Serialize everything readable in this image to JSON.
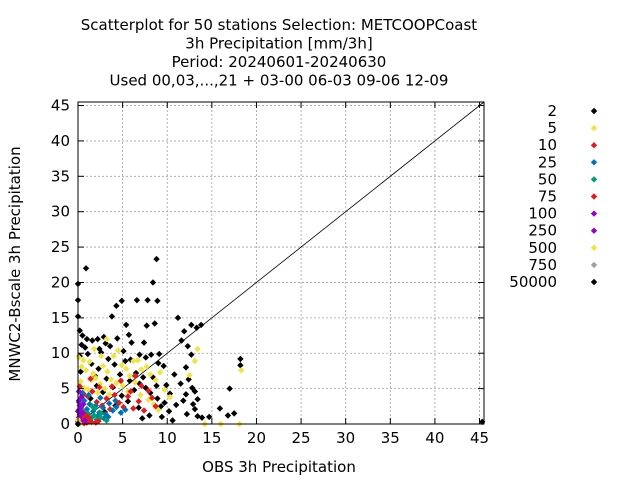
{
  "chart_data": {
    "type": "scatter",
    "title_lines": [
      "Scatterplot for   50 stations Selection: METCOOPCoast",
      "3h Precipitation [mm/3h]",
      "Period: 20240601-20240630",
      "Used 00,03,...,21 + 03-00 06-03 09-06 12-09"
    ],
    "xlabel": "OBS 3h Precipitation",
    "ylabel": "MNWC2-Bscale 3h Precipitation",
    "xlim": [
      0,
      45.5
    ],
    "ylim": [
      0,
      45.5
    ],
    "xticks": [
      0,
      5,
      10,
      15,
      20,
      25,
      30,
      35,
      40,
      45
    ],
    "yticks": [
      0,
      5,
      10,
      15,
      20,
      25,
      30,
      35,
      40,
      45
    ],
    "grid": true,
    "diagonal_line": true,
    "legend_position": "right",
    "legend": [
      {
        "label": "2",
        "color": "#000000"
      },
      {
        "label": "5",
        "color": "#f0e442"
      },
      {
        "label": "10",
        "color": "#e41a1c"
      },
      {
        "label": "25",
        "color": "#0072b2"
      },
      {
        "label": "50",
        "color": "#009e73"
      },
      {
        "label": "75",
        "color": "#e41a1c"
      },
      {
        "label": "100",
        "color": "#9400d3"
      },
      {
        "label": "250",
        "color": "#9400d3"
      },
      {
        "label": "500",
        "color": "#f0e442"
      },
      {
        "label": "750",
        "color": "#a0a0a0"
      },
      {
        "label": "50000",
        "color": "#000000"
      }
    ],
    "series": [
      {
        "name": "2",
        "color": "#000000",
        "points": [
          [
            0,
            19.8
          ],
          [
            0,
            17.5
          ],
          [
            0,
            15.2
          ],
          [
            0.2,
            13.2
          ],
          [
            0.5,
            12.5
          ],
          [
            0.9,
            22.0
          ],
          [
            0.4,
            11.2
          ],
          [
            1.0,
            12.0
          ],
          [
            1.6,
            11.8
          ],
          [
            2.2,
            12.0
          ],
          [
            2.4,
            10.6
          ],
          [
            2.9,
            12.3
          ],
          [
            3.1,
            11.4
          ],
          [
            3.8,
            15.2
          ],
          [
            4.3,
            16.7
          ],
          [
            4.9,
            17.4
          ],
          [
            5.4,
            14.0
          ],
          [
            5.7,
            12.6
          ],
          [
            6.0,
            11.5
          ],
          [
            5.1,
            10.3
          ],
          [
            6.6,
            17.5
          ],
          [
            7.8,
            17.5
          ],
          [
            8.9,
            17.4
          ],
          [
            8.8,
            23.3
          ],
          [
            8.4,
            20.0
          ],
          [
            8.6,
            14.2
          ],
          [
            7.7,
            13.9
          ],
          [
            7.4,
            11.5
          ],
          [
            6.9,
            9.8
          ],
          [
            7.6,
            9.4
          ],
          [
            8.2,
            9.8
          ],
          [
            9.0,
            8.6
          ],
          [
            9.6,
            8.2
          ],
          [
            9.1,
            9.9
          ],
          [
            8.4,
            6.6
          ],
          [
            6.9,
            5.7
          ],
          [
            7.6,
            5.1
          ],
          [
            8.8,
            5.4
          ],
          [
            9.9,
            5.5
          ],
          [
            10.3,
            4.3
          ],
          [
            9.7,
            3.0
          ],
          [
            11.2,
            15.0
          ],
          [
            11.9,
            13.1
          ],
          [
            11.6,
            11.8
          ],
          [
            12.7,
            14.0
          ],
          [
            13.3,
            13.6
          ],
          [
            13.8,
            14.0
          ],
          [
            12.3,
            11.0
          ],
          [
            12.7,
            9.8
          ],
          [
            12.1,
            8.0
          ],
          [
            12.4,
            6.3
          ],
          [
            12.8,
            5.1
          ],
          [
            12.1,
            4.2
          ],
          [
            13.4,
            3.5
          ],
          [
            13.1,
            2.1
          ],
          [
            13.4,
            1.1
          ],
          [
            13.9,
            0.9
          ],
          [
            14.7,
            1.0
          ],
          [
            15.9,
            2.2
          ],
          [
            16.8,
            1.2
          ],
          [
            17.5,
            1.5
          ],
          [
            18.2,
            8.3
          ],
          [
            18.2,
            9.2
          ],
          [
            17.0,
            5.0
          ],
          [
            45.3,
            0.3
          ],
          [
            1.5,
            8.5
          ],
          [
            2.3,
            7.8
          ],
          [
            3.4,
            9.2
          ],
          [
            4.1,
            8.4
          ],
          [
            5.3,
            8.9
          ],
          [
            5.9,
            9.1
          ],
          [
            4.7,
            7.0
          ],
          [
            3.2,
            6.4
          ],
          [
            2.1,
            5.4
          ],
          [
            1.1,
            9.9
          ],
          [
            0.3,
            7.4
          ],
          [
            6.3,
            4.8
          ],
          [
            5.6,
            3.2
          ],
          [
            4.2,
            2.6
          ],
          [
            3.0,
            1.7
          ],
          [
            6.8,
            2.3
          ],
          [
            7.2,
            0.8
          ],
          [
            8.0,
            1.2
          ],
          [
            9.4,
            1.0
          ],
          [
            10.6,
            0.5
          ],
          [
            11.0,
            2.7
          ],
          [
            10.2,
            1.8
          ],
          [
            0.5,
            4.1
          ],
          [
            1.4,
            3.6
          ],
          [
            2.6,
            10.1
          ],
          [
            3.6,
            11.0
          ],
          [
            4.4,
            12.1
          ],
          [
            0.8,
            10.8
          ],
          [
            0.2,
            9.6
          ],
          [
            1.9,
            6.8
          ],
          [
            2.8,
            4.5
          ],
          [
            3.9,
            5.2
          ],
          [
            4.9,
            4.0
          ],
          [
            5.8,
            6.1
          ],
          [
            6.5,
            7.2
          ],
          [
            7.3,
            6.6
          ],
          [
            8.1,
            4.4
          ],
          [
            8.9,
            3.6
          ],
          [
            9.3,
            2.5
          ],
          [
            10.8,
            7.0
          ],
          [
            11.5,
            5.7
          ],
          [
            11.8,
            3.3
          ],
          [
            12.9,
            2.8
          ],
          [
            13.1,
            4.6
          ],
          [
            12.2,
            1.4
          ]
        ]
      },
      {
        "name": "5",
        "color": "#f0e442",
        "points": [
          [
            0.1,
            9.4
          ],
          [
            0.4,
            8.1
          ],
          [
            0.6,
            9.0
          ],
          [
            0.9,
            7.6
          ],
          [
            1.3,
            8.8
          ],
          [
            1.7,
            7.1
          ],
          [
            2.0,
            6.5
          ],
          [
            2.5,
            5.7
          ],
          [
            2.8,
            8.2
          ],
          [
            3.3,
            7.4
          ],
          [
            3.7,
            6.3
          ],
          [
            4.0,
            9.6
          ],
          [
            4.5,
            10.4
          ],
          [
            4.9,
            8.3
          ],
          [
            5.4,
            7.8
          ],
          [
            5.8,
            6.8
          ],
          [
            6.2,
            8.9
          ],
          [
            6.7,
            9.0
          ],
          [
            7.1,
            7.7
          ],
          [
            7.7,
            8.1
          ],
          [
            8.1,
            7.0
          ],
          [
            8.7,
            6.2
          ],
          [
            9.2,
            7.3
          ],
          [
            9.7,
            4.8
          ],
          [
            10.3,
            3.8
          ],
          [
            0.3,
            6.0
          ],
          [
            0.7,
            5.1
          ],
          [
            1.1,
            4.9
          ],
          [
            1.5,
            6.2
          ],
          [
            2.2,
            4.4
          ],
          [
            3.0,
            5.0
          ],
          [
            3.5,
            4.2
          ],
          [
            4.3,
            5.8
          ],
          [
            5.0,
            5.4
          ],
          [
            5.6,
            4.6
          ],
          [
            6.4,
            5.9
          ],
          [
            7.0,
            4.1
          ],
          [
            7.9,
            3.4
          ],
          [
            8.5,
            2.8
          ],
          [
            9.0,
            2.0
          ],
          [
            13.4,
            10.6
          ],
          [
            13.1,
            8.9
          ],
          [
            12.5,
            6.9
          ],
          [
            18.3,
            7.6
          ],
          [
            16.0,
            0.0
          ],
          [
            14.2,
            0.0
          ],
          [
            18.1,
            0.0
          ],
          [
            3.2,
            12.0
          ],
          [
            2.6,
            9.6
          ],
          [
            1.8,
            10.6
          ]
        ]
      },
      {
        "name": "10",
        "color": "#e41a1c",
        "points": [
          [
            0.2,
            5.3
          ],
          [
            0.6,
            4.3
          ],
          [
            1.1,
            3.9
          ],
          [
            1.6,
            4.6
          ],
          [
            2.1,
            3.1
          ],
          [
            2.7,
            2.6
          ],
          [
            3.2,
            3.6
          ],
          [
            3.6,
            2.1
          ],
          [
            4.1,
            4.1
          ],
          [
            4.6,
            3.0
          ],
          [
            5.1,
            2.4
          ],
          [
            5.6,
            3.9
          ],
          [
            6.2,
            2.2
          ],
          [
            6.8,
            3.2
          ],
          [
            7.4,
            1.9
          ],
          [
            1.4,
            6.4
          ],
          [
            2.4,
            5.2
          ],
          [
            3.8,
            5.3
          ],
          [
            4.8,
            6.1
          ],
          [
            5.9,
            4.6
          ],
          [
            6.4,
            6.8
          ],
          [
            7.1,
            5.4
          ],
          [
            7.9,
            4.7
          ],
          [
            8.3,
            3.7
          ],
          [
            8.7,
            2.5
          ]
        ]
      },
      {
        "name": "25",
        "color": "#0072b2",
        "points": [
          [
            0.1,
            3.1
          ],
          [
            0.4,
            2.5
          ],
          [
            0.7,
            3.3
          ],
          [
            1.0,
            2.1
          ],
          [
            1.3,
            2.8
          ],
          [
            1.7,
            1.8
          ],
          [
            2.0,
            2.6
          ],
          [
            2.4,
            1.6
          ],
          [
            2.8,
            2.3
          ],
          [
            3.1,
            1.4
          ],
          [
            3.5,
            2.9
          ],
          [
            3.9,
            1.9
          ],
          [
            4.3,
            2.4
          ],
          [
            4.8,
            1.6
          ],
          [
            0.3,
            1.6
          ],
          [
            0.9,
            1.2
          ],
          [
            1.5,
            0.9
          ],
          [
            2.2,
            1.1
          ],
          [
            2.9,
            0.8
          ],
          [
            3.4,
            1.0
          ],
          [
            0.5,
            4.4
          ],
          [
            1.2,
            4.1
          ],
          [
            2.5,
            3.7
          ],
          [
            4.2,
            3.3
          ],
          [
            5.3,
            2.0
          ]
        ]
      },
      {
        "name": "50",
        "color": "#009e73",
        "points": [
          [
            0.1,
            2.0
          ],
          [
            0.3,
            1.4
          ],
          [
            0.6,
            1.8
          ],
          [
            0.8,
            1.0
          ],
          [
            1.1,
            1.5
          ],
          [
            1.4,
            0.7
          ],
          [
            1.8,
            1.2
          ],
          [
            2.1,
            0.6
          ],
          [
            2.5,
            0.9
          ],
          [
            0.2,
            0.6
          ],
          [
            0.5,
            0.4
          ],
          [
            0.9,
            0.3
          ],
          [
            1.3,
            0.5
          ],
          [
            1.9,
            2.2
          ],
          [
            2.6,
            1.5
          ],
          [
            3.2,
            0.5
          ],
          [
            0.4,
            2.6
          ],
          [
            1.6,
            2.5
          ]
        ]
      },
      {
        "name": "75",
        "color": "#e41a1c",
        "points": [
          [
            0.2,
            1.1
          ],
          [
            0.5,
            0.8
          ],
          [
            0.8,
            1.3
          ],
          [
            1.2,
            0.9
          ],
          [
            0.3,
            0.2
          ],
          [
            0.7,
            0.1
          ],
          [
            1.0,
            0.2
          ],
          [
            1.5,
            0.3
          ],
          [
            2.0,
            0.2
          ],
          [
            2.3,
            0.4
          ]
        ]
      },
      {
        "name": "100",
        "color": "#9400d3",
        "points": [
          [
            0.1,
            0.6
          ],
          [
            0.2,
            1.3
          ],
          [
            0.3,
            2.3
          ],
          [
            0.1,
            3.3
          ],
          [
            0.4,
            3.8
          ],
          [
            0.1,
            4.6
          ],
          [
            0.6,
            2.8
          ],
          [
            0.2,
            0.1
          ],
          [
            0.5,
            1.6
          ],
          [
            0.8,
            0.5
          ]
        ]
      },
      {
        "name": "250",
        "color": "#9400d3",
        "points": [
          [
            0.0,
            0.3
          ],
          [
            0.1,
            0.9
          ],
          [
            0.3,
            0.5
          ],
          [
            0.0,
            1.8
          ],
          [
            0.2,
            2.6
          ]
        ]
      },
      {
        "name": "500",
        "color": "#f0e442",
        "points": [
          [
            0.0,
            0.1
          ],
          [
            0.1,
            0.2
          ],
          [
            0.0,
            0.6
          ],
          [
            0.2,
            0.0
          ]
        ]
      },
      {
        "name": "750",
        "color": "#a0a0a0",
        "points": [
          [
            0.0,
            0.0
          ],
          [
            0.05,
            0.1
          ]
        ]
      },
      {
        "name": "50000",
        "color": "#000000",
        "points": [
          [
            0.0,
            0.0
          ]
        ]
      }
    ]
  }
}
